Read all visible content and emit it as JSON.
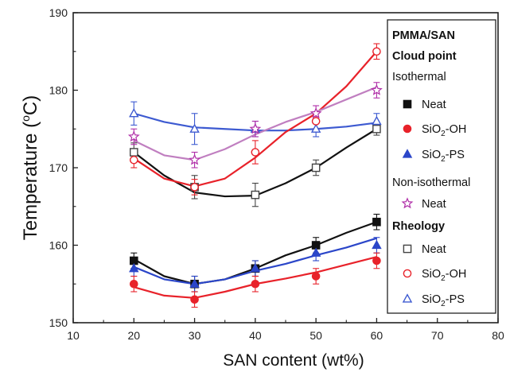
{
  "chart_data": {
    "type": "line",
    "xlabel": "SAN content (wt%)",
    "ylabel": {
      "main": "Temperature (",
      "sup": "o",
      "unit": "C)"
    },
    "xlim": [
      10,
      80
    ],
    "ylim": [
      150,
      190
    ],
    "xticks": [
      "10",
      "20",
      "30",
      "40",
      "50",
      "60",
      "70",
      "80"
    ],
    "yticks": [
      "150",
      "160",
      "170",
      "180",
      "190"
    ],
    "grid": false,
    "legend_placement": "right",
    "legend": {
      "title_lines": [
        "PMMA/SAN",
        "Cloud point"
      ],
      "group_isothermal": "Isothermal",
      "group_nonisothermal": "Non-isothermal",
      "group_rheology": "Rheology",
      "entries": [
        {
          "series": 0,
          "parts": [
            {
              "t": "Neat"
            }
          ]
        },
        {
          "series": 1,
          "parts": [
            {
              "t": "SiO"
            },
            {
              "t": "2",
              "sub": true
            },
            {
              "t": "-OH"
            }
          ]
        },
        {
          "series": 2,
          "parts": [
            {
              "t": "SiO"
            },
            {
              "t": "2",
              "sub": true
            },
            {
              "t": "-PS"
            }
          ]
        },
        {
          "series": 3,
          "parts": [
            {
              "t": "Neat"
            }
          ]
        },
        {
          "series": 4,
          "parts": [
            {
              "t": "Neat"
            }
          ]
        },
        {
          "series": 5,
          "parts": [
            {
              "t": "SiO"
            },
            {
              "t": "2",
              "sub": true
            },
            {
              "t": "-OH"
            }
          ]
        },
        {
          "series": 6,
          "parts": [
            {
              "t": "SiO"
            },
            {
              "t": "2",
              "sub": true
            },
            {
              "t": "-PS"
            }
          ]
        }
      ]
    },
    "x": [
      20,
      30,
      40,
      50,
      60
    ],
    "series": [
      {
        "name": "Neat",
        "group": "Isothermal",
        "marker": "square",
        "filled": true,
        "color": "#111111",
        "line_color": "#111111",
        "values": [
          158.0,
          155.0,
          157.0,
          160.0,
          163.0
        ],
        "err": [
          1.0,
          1.0,
          1.0,
          1.0,
          1.0
        ],
        "curve": [
          [
            20,
            158.2
          ],
          [
            25,
            156.0
          ],
          [
            30,
            155.0
          ],
          [
            35,
            155.6
          ],
          [
            40,
            157.0
          ],
          [
            45,
            158.7
          ],
          [
            50,
            160.0
          ],
          [
            55,
            161.6
          ],
          [
            60,
            163.0
          ]
        ]
      },
      {
        "name": "SiO2-OH",
        "group": "Isothermal",
        "marker": "circle",
        "filled": true,
        "color": "#e8222a",
        "line_color": "#e8222a",
        "values": [
          155.0,
          153.0,
          155.0,
          156.0,
          158.0
        ],
        "err": [
          1.0,
          1.0,
          1.0,
          1.0,
          1.0
        ],
        "curve": [
          [
            20,
            154.6
          ],
          [
            25,
            153.5
          ],
          [
            30,
            153.2
          ],
          [
            35,
            154.0
          ],
          [
            40,
            155.0
          ],
          [
            45,
            155.7
          ],
          [
            50,
            156.5
          ],
          [
            55,
            157.5
          ],
          [
            60,
            158.5
          ]
        ]
      },
      {
        "name": "SiO2-PS",
        "group": "Isothermal",
        "marker": "triangle",
        "filled": true,
        "color": "#2b46c9",
        "line_color": "#2b46c9",
        "values": [
          157.0,
          155.0,
          157.0,
          159.0,
          160.0
        ],
        "err": [
          1.0,
          1.0,
          1.0,
          1.0,
          1.0
        ],
        "curve": [
          [
            20,
            157.2
          ],
          [
            25,
            155.6
          ],
          [
            30,
            155.0
          ],
          [
            35,
            155.6
          ],
          [
            40,
            156.7
          ],
          [
            45,
            157.6
          ],
          [
            50,
            158.7
          ],
          [
            55,
            159.7
          ],
          [
            60,
            160.9
          ]
        ]
      },
      {
        "name": "Neat",
        "group": "Non-isothermal",
        "marker": "star",
        "filled": false,
        "color": "#b02fa8",
        "line_color": "#c07fc0",
        "values": [
          174.0,
          171.0,
          175.0,
          177.0,
          180.0
        ],
        "err": [
          1.0,
          1.0,
          1.0,
          1.0,
          1.0
        ],
        "curve": [
          [
            20,
            173.5
          ],
          [
            25,
            171.6
          ],
          [
            30,
            171.0
          ],
          [
            35,
            172.4
          ],
          [
            40,
            174.3
          ],
          [
            45,
            175.9
          ],
          [
            50,
            177.2
          ],
          [
            55,
            178.8
          ],
          [
            60,
            180.4
          ]
        ]
      },
      {
        "name": "Neat",
        "group": "Rheology",
        "marker": "square",
        "filled": false,
        "color": "#444444",
        "line_color": "#111111",
        "values": [
          172.0,
          167.5,
          166.5,
          170.0,
          175.0
        ],
        "err": [
          1.2,
          1.5,
          1.5,
          1.0,
          0.8
        ],
        "curve": [
          [
            20,
            172.0
          ],
          [
            25,
            169.0
          ],
          [
            30,
            166.8
          ],
          [
            35,
            166.3
          ],
          [
            40,
            166.4
          ],
          [
            45,
            168.0
          ],
          [
            50,
            170.0
          ],
          [
            55,
            172.6
          ],
          [
            60,
            175.0
          ]
        ]
      },
      {
        "name": "SiO2-OH",
        "group": "Rheology",
        "marker": "circle",
        "filled": false,
        "color": "#e8222a",
        "line_color": "#e8222a",
        "values": [
          171.0,
          167.5,
          172.0,
          176.0,
          185.0
        ],
        "err": [
          1.0,
          1.0,
          1.5,
          1.0,
          1.0
        ],
        "curve": [
          [
            20,
            171.2
          ],
          [
            25,
            168.6
          ],
          [
            30,
            167.6
          ],
          [
            35,
            168.6
          ],
          [
            40,
            171.3
          ],
          [
            45,
            174.6
          ],
          [
            50,
            177.0
          ],
          [
            55,
            180.5
          ],
          [
            60,
            185.0
          ]
        ]
      },
      {
        "name": "SiO2-PS",
        "group": "Rheology",
        "marker": "triangle",
        "filled": false,
        "color": "#3d5ad1",
        "line_color": "#3d5ad1",
        "values": [
          177.0,
          175.0,
          175.0,
          175.0,
          176.0
        ],
        "err": [
          1.5,
          2.0,
          1.0,
          1.0,
          1.0
        ],
        "curve": [
          [
            20,
            177.0
          ],
          [
            25,
            175.9
          ],
          [
            30,
            175.2
          ],
          [
            35,
            175.0
          ],
          [
            40,
            174.8
          ],
          [
            45,
            174.8
          ],
          [
            50,
            175.0
          ],
          [
            55,
            175.3
          ],
          [
            60,
            175.8
          ]
        ]
      }
    ]
  }
}
